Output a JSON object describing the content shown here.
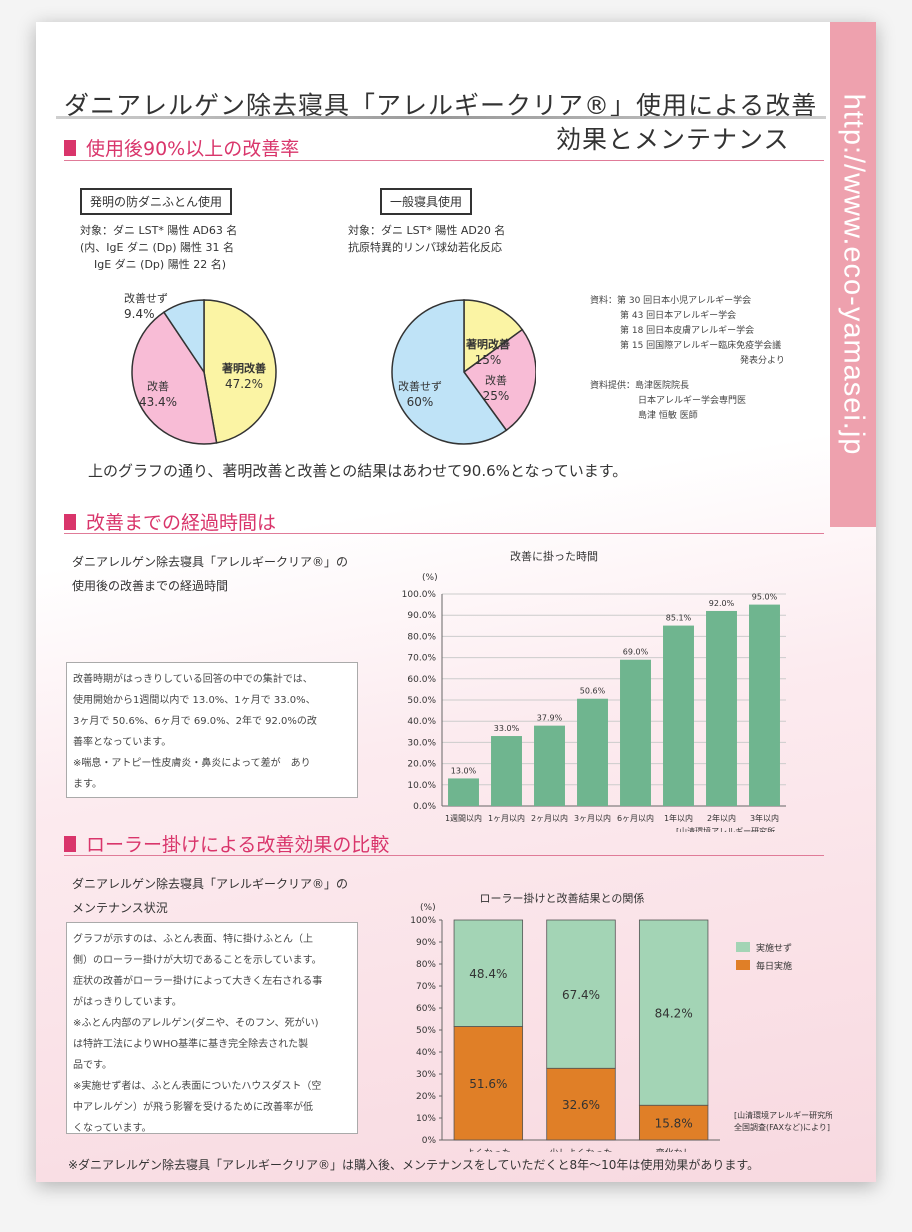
{
  "header": {
    "title_line1": "ダニアレルゲン除去寝具「アレルギークリア®」使用による改善",
    "title_line2": "効果とメンテナンス",
    "url": "http://www.eco-yamasei.jp"
  },
  "section1": {
    "heading": "使用後90%以上の改善率",
    "left": {
      "label": "発明の防ダニふとん使用",
      "desc": [
        "対象：ダニ LST* 陽性 AD63 名",
        "(内、IgE ダニ (Dp) 陽性 31 名",
        "IgE ダニ (Dp) 陽性 22 名)"
      ]
    },
    "right": {
      "label": "一般寝具使用",
      "desc": [
        "対象：ダニ LST* 陽性 AD20 名",
        "抗原特異的リンパ球幼若化反応"
      ]
    },
    "sources": [
      "資料：第 30 回日本小児アレルギー学会",
      "第 43 回日本アレルギー学会",
      "第 18 回日本皮膚アレルギー学会",
      "第 15 回国際アレルギー臨床免疫学会議",
      "発表分より",
      "資料提供：島津医院院長",
      "日本アレルギー学会専門医",
      "島津 恒敏 医師"
    ],
    "summary": "上のグラフの通り、著明改善と改善との結果はあわせて90.6%となっています。"
  },
  "section2": {
    "heading": "改善までの経過時間は",
    "subtitle": [
      "ダニアレルゲン除去寝具「アレルギークリア®」の",
      "使用後の改善までの経過時間"
    ],
    "note": [
      "改善時期がはっきりしている回答の中での集計では、",
      "使用開始から1週間以内で 13.0%、1ヶ月で 33.0%、",
      "3ヶ月で 50.6%、6ヶ月で 69.0%、2年で 92.0%の改",
      "善率となっています。",
      "※喘息・アトピー性皮膚炎・鼻炎によって差が　あり",
      "ます。"
    ]
  },
  "section3": {
    "heading": "ローラー掛けによる改善効果の比較",
    "subtitle": [
      "ダニアレルゲン除去寝具「アレルギークリア®」の",
      "メンテナンス状況"
    ],
    "note": [
      "グラフが示すのは、ふとん表面、特に掛けふとん（上",
      "側）のローラー掛けが大切であることを示しています。",
      "症状の改善がローラー掛けによって大きく左右される事",
      "がはっきりしています。",
      "※ふとん内部のアレルゲン(ダニや、そのフン、死がい)",
      "は特許工法によりWHO基準に基き完全除去された製",
      "品です。",
      "※実施せず者は、ふとん表面についたハウスダスト（空",
      "中アレルゲン）が飛う影響を受けるために改善率が低",
      "くなっています。"
    ]
  },
  "footer": "※ダニアレルゲン除去寝具「アレルギークリア®」は購入後、メンテナンスをしていただくと8年〜10年は使用効果があります。",
  "chart_data": [
    {
      "type": "pie",
      "labels": [
        "著明改善",
        "改善",
        "改善せず"
      ],
      "values": [
        47.2,
        43.4,
        9.4
      ],
      "value_labels": [
        "47.2%",
        "43.4%",
        "9.4%"
      ],
      "colors": [
        "#fbf4a4",
        "#f8bcd6",
        "#bfe3f7"
      ]
    },
    {
      "type": "pie",
      "labels": [
        "著明改善",
        "改善",
        "改善せず"
      ],
      "values": [
        15,
        25,
        60
      ],
      "value_labels": [
        "15%",
        "25%",
        "60%"
      ],
      "colors": [
        "#fbf4a4",
        "#f8bcd6",
        "#bfe3f7"
      ]
    },
    {
      "type": "bar",
      "title": "改善に掛った時間",
      "ylabel": "(%)",
      "categories": [
        "1週間以内",
        "1ヶ月以内",
        "2ヶ月以内",
        "3ヶ月以内",
        "6ヶ月以内",
        "1年以内",
        "2年以内",
        "3年以内"
      ],
      "values": [
        13.0,
        33.0,
        37.9,
        50.6,
        69.0,
        85.1,
        92.0,
        95.0
      ],
      "value_labels": [
        "13.0%",
        "33.0%",
        "37.9%",
        "50.6%",
        "69.0%",
        "85.1%",
        "92.0%",
        "95.0%"
      ],
      "yticks": [
        "0.0%",
        "10.0%",
        "20.0%",
        "30.0%",
        "40.0%",
        "50.0%",
        "60.0%",
        "70.0%",
        "80.0%",
        "90.0%",
        "100.0%"
      ],
      "ylim": [
        0,
        100
      ],
      "color": "#6fb58f",
      "source": [
        "[山清環境アレルギー研究所",
        "全国調査(FAXなど)により]"
      ]
    },
    {
      "type": "bar",
      "stacked": true,
      "title": "ローラー掛けと改善結果との関係",
      "ylabel": "(%)",
      "categories": [
        "よくなった",
        "少しよくなった",
        "変化なし"
      ],
      "series": [
        {
          "name": "毎日実施",
          "values": [
            51.6,
            32.6,
            15.8
          ],
          "labels": [
            "51.6%",
            "32.6%",
            "15.8%"
          ],
          "color": "#e07f27"
        },
        {
          "name": "実施せず",
          "values": [
            48.4,
            67.4,
            84.2
          ],
          "labels": [
            "48.4%",
            "67.4%",
            "84.2%"
          ],
          "color": "#a3d4b5"
        }
      ],
      "legend": [
        "実施せず",
        "毎日実施"
      ],
      "yticks": [
        "0%",
        "10%",
        "20%",
        "30%",
        "40%",
        "50%",
        "60%",
        "70%",
        "80%",
        "90%",
        "100%"
      ],
      "ylim": [
        0,
        100
      ],
      "source": [
        "[山清環境アレルギー研究所",
        "全国調査(FAXなど)により]"
      ]
    }
  ]
}
